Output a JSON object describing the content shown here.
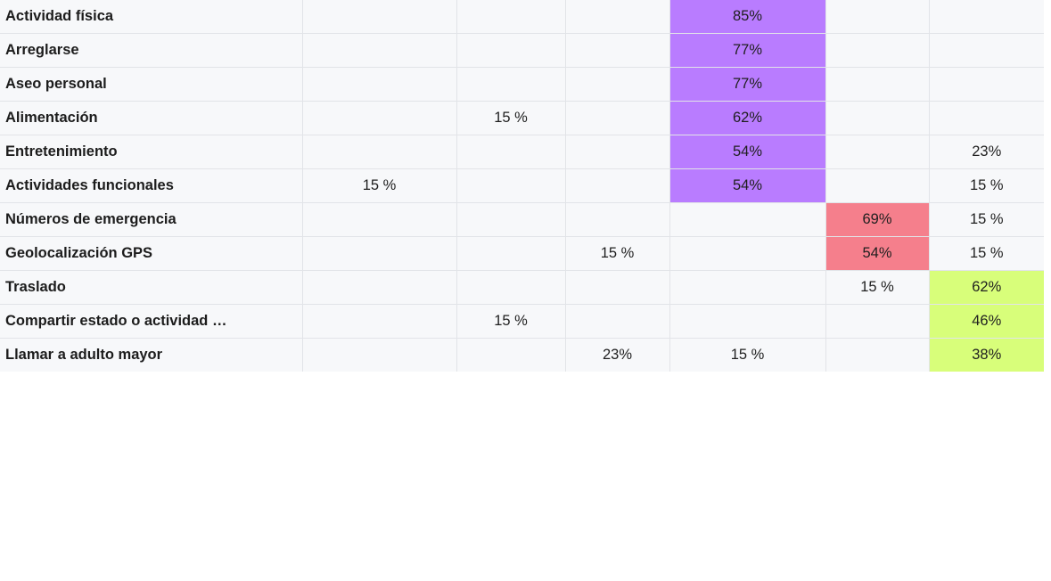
{
  "colors": {
    "purple": "#b97cff",
    "red": "#f57f8c",
    "green": "#d8fe7a",
    "row_bg": "#f7f8fa",
    "grid": "#e2e4e8"
  },
  "rows": [
    {
      "label": "Actividad física",
      "cells": [
        "",
        "",
        "",
        "85%",
        "",
        ""
      ],
      "highlight": {
        "col": 3,
        "color": "purple"
      }
    },
    {
      "label": "Arreglarse",
      "cells": [
        "",
        "",
        "",
        "77%",
        "",
        ""
      ],
      "highlight": {
        "col": 3,
        "color": "purple"
      }
    },
    {
      "label": "Aseo personal",
      "cells": [
        "",
        "",
        "",
        "77%",
        "",
        ""
      ],
      "highlight": {
        "col": 3,
        "color": "purple"
      }
    },
    {
      "label": "Alimentación",
      "cells": [
        "",
        "15 %",
        "",
        "62%",
        "",
        ""
      ],
      "highlight": {
        "col": 3,
        "color": "purple"
      }
    },
    {
      "label": "Entretenimiento",
      "cells": [
        "",
        "",
        "",
        "54%",
        "",
        "23%"
      ],
      "highlight": {
        "col": 3,
        "color": "purple"
      }
    },
    {
      "label": "Actividades funcionales",
      "cells": [
        "15 %",
        "",
        "",
        "54%",
        "",
        "15 %"
      ],
      "highlight": {
        "col": 3,
        "color": "purple"
      }
    },
    {
      "label": "Números de emergencia",
      "cells": [
        "",
        "",
        "",
        "",
        "69%",
        "15 %"
      ],
      "highlight": {
        "col": 4,
        "color": "red"
      }
    },
    {
      "label": "Geolocalización GPS",
      "cells": [
        "",
        "",
        "15 %",
        "",
        "54%",
        "15 %"
      ],
      "highlight": {
        "col": 4,
        "color": "red"
      }
    },
    {
      "label": "Traslado",
      "cells": [
        "",
        "",
        "",
        "",
        "15 %",
        "62%"
      ],
      "highlight": {
        "col": 5,
        "color": "green"
      }
    },
    {
      "label": "Compartir estado o actividad …",
      "cells": [
        "",
        "15 %",
        "",
        "",
        "",
        "46%"
      ],
      "highlight": {
        "col": 5,
        "color": "green"
      }
    },
    {
      "label": "Llamar a adulto mayor",
      "cells": [
        "",
        "",
        "23%",
        "15 %",
        "",
        "38%"
      ],
      "highlight": {
        "col": 5,
        "color": "green"
      }
    }
  ]
}
